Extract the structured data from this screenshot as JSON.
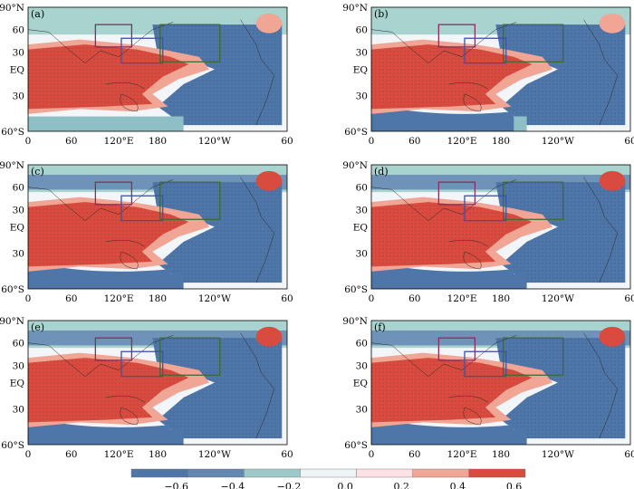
{
  "panels": [
    {
      "id": "a",
      "label": "(a)",
      "land_fraction_shown": "original"
    },
    {
      "id": "b",
      "label": "(b)"
    },
    {
      "id": "c",
      "label": "(c)"
    },
    {
      "id": "d",
      "label": "(d)"
    },
    {
      "id": "e",
      "label": "(e)"
    },
    {
      "id": "f",
      "label": "(f)"
    }
  ],
  "lat_labels": [
    "90°N",
    "60",
    "30",
    "EQ",
    "30",
    "60°S"
  ],
  "lon_labels": [
    "0",
    "60",
    "120°E",
    "180",
    "120°W",
    "60"
  ],
  "colorbar": {
    "tick_labels": [
      "−0.6",
      "−0.4",
      "−0.2",
      "0.0",
      "0.2",
      "0.4",
      "0.6"
    ],
    "colors": [
      "#4f76a8",
      "#6488b2",
      "#9dcac8",
      "#eef3f6",
      "#fde1e4",
      "#f0a595",
      "#d94b3e"
    ]
  },
  "boxes": [
    {
      "name": "purple-box",
      "color": "#8b2d5c"
    },
    {
      "name": "blue-box",
      "color": "#3a53a4"
    },
    {
      "name": "green-box",
      "color": "#3f6a38"
    }
  ],
  "colors": {
    "positive": "#d94b3e",
    "negative": "#4f76a8",
    "neutral": "#eef3f6"
  }
}
